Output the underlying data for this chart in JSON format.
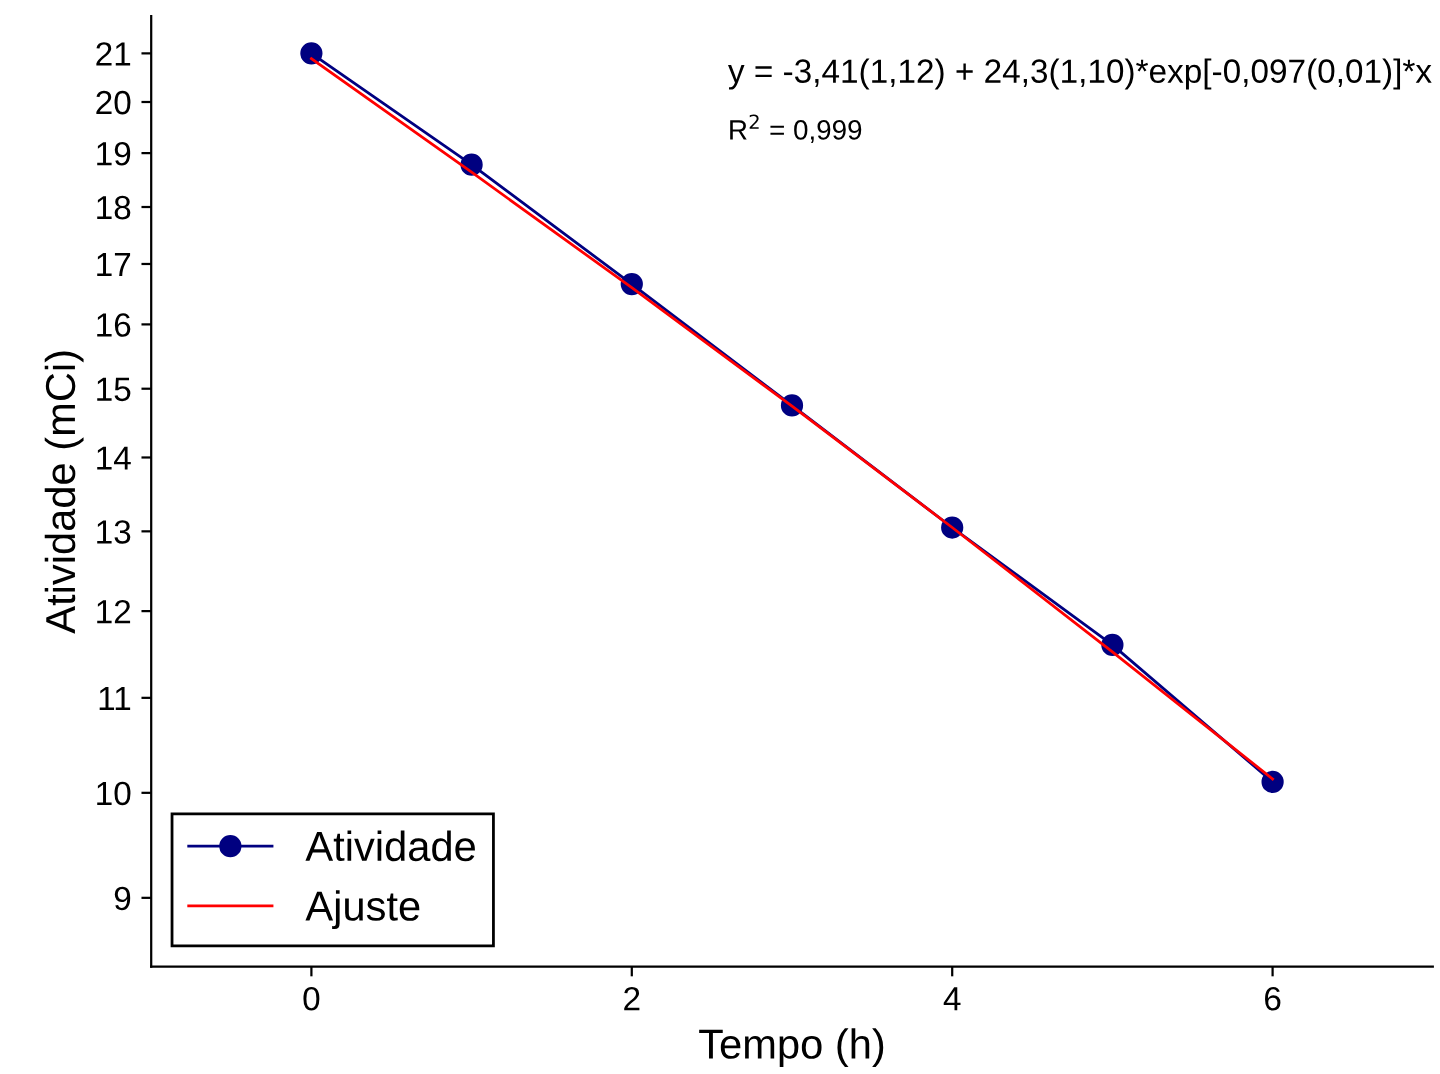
{
  "chart_data": {
    "type": "line",
    "xlabel": "Tempo (h)",
    "ylabel": "Atividade (mCi)",
    "x": [
      0,
      1,
      2,
      3,
      4,
      5,
      6
    ],
    "series": [
      {
        "name": "Atividade",
        "color": "#000080",
        "values": [
          21.0,
          18.78,
          16.66,
          14.75,
          13.05,
          11.6,
          10.11
        ],
        "marker": "circle"
      },
      {
        "name": "Ajuste",
        "color": "#ff0000",
        "values": [
          20.89,
          18.64,
          16.6,
          14.74,
          13.05,
          11.52,
          10.14
        ],
        "marker": "none"
      }
    ],
    "log": "y",
    "xlim": [
      -1,
      7
    ],
    "ylim": [
      8.4,
      21.8
    ],
    "xticks": [
      0,
      2,
      4,
      6
    ],
    "yticks": [
      9,
      10,
      11,
      12,
      13,
      14,
      15,
      16,
      17,
      18,
      19,
      20,
      21
    ],
    "grid": false,
    "legend": "bottom left",
    "annotations": [
      "y = -3,41(1,12) + 24,3(1,10)*exp[-0,097(0,01)]*x",
      "R$^{2}$ = 0,999"
    ]
  }
}
